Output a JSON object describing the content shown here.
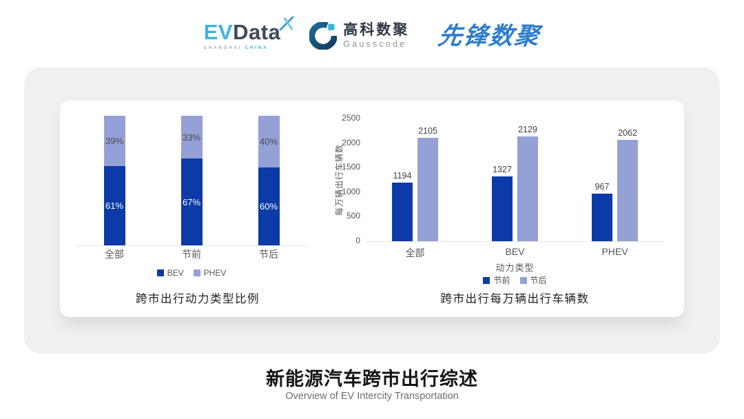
{
  "header": {
    "evdata": {
      "ev": "EV",
      "data": "Data",
      "sub_left": "SHANGHAI",
      "sub_right": "CHINA"
    },
    "gausscode": {
      "cn": "高科数聚",
      "en": "Gausscode"
    },
    "pioneer": {
      "text": "先锋数聚"
    }
  },
  "colors": {
    "series_dark_blue": "#0c3aa6",
    "series_light_blue": "#94a0d6",
    "evdata_cyan": "#3db3e3",
    "evdata_dark": "#3e4a5a",
    "gausscode_navy": "#174a70",
    "gausscode_cyan": "#35b8cf",
    "pioneer_blue": "#2f7ccd",
    "panel_gray": "#f0f0ef"
  },
  "chart_data": [
    {
      "type": "bar",
      "variant": "stacked-100",
      "title": "跨市出行动力类型比例",
      "categories": [
        "全部",
        "节前",
        "节后"
      ],
      "unit": "%",
      "ylim": [
        0,
        100
      ],
      "grid": false,
      "legend_position": "bottom",
      "series": [
        {
          "name": "BEV",
          "values": [
            61,
            67,
            60
          ],
          "color": "#0c3aa6"
        },
        {
          "name": "PHEV",
          "values": [
            39,
            33,
            40
          ],
          "color": "#94a0d6"
        }
      ]
    },
    {
      "type": "bar",
      "variant": "grouped",
      "title": "跨市出行每万辆出行车辆数",
      "xlabel": "动力类型",
      "ylabel": "每万辆出行车辆数",
      "categories": [
        "全部",
        "BEV",
        "PHEV"
      ],
      "ylim": [
        0,
        2500
      ],
      "yticks": [
        0,
        500,
        1000,
        1500,
        2000,
        2500
      ],
      "grid": false,
      "legend_position": "bottom",
      "series": [
        {
          "name": "节前",
          "values": [
            1194,
            1327,
            967
          ],
          "color": "#0c3aa6"
        },
        {
          "name": "节后",
          "values": [
            2105,
            2129,
            2062
          ],
          "color": "#94a0d6"
        }
      ]
    }
  ],
  "footer": {
    "title": "新能源汽车跨市出行综述",
    "subtitle": "Overview of EV Intercity Transportation"
  }
}
